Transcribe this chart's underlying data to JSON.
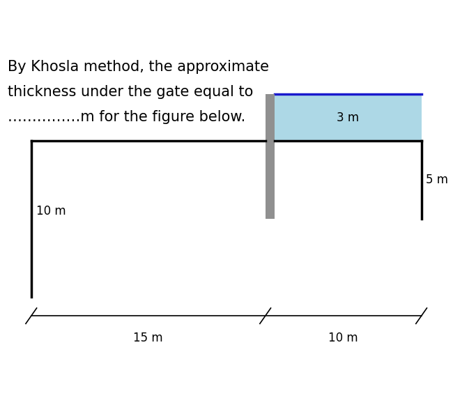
{
  "title_line1": "By Khosla method, the approximate",
  "title_line2": "thickness under the gate equal to",
  "title_line3": "……………m for the figure below.",
  "bg_color": "#ffffff",
  "fig_width": 6.83,
  "fig_height": 5.84,
  "gate_color": "#909090",
  "fill_color": "#add8e6",
  "fill_edge_color": "#1a1acd",
  "structure_color": "#000000",
  "dim_left_label": "15 m",
  "dim_right_label": "10 m",
  "dim_left_depth_label": "10 m",
  "dim_right_depth_label": "5 m",
  "dim_gate_label": "3 m",
  "label_fontsize": 12,
  "title_fontsize": 15
}
